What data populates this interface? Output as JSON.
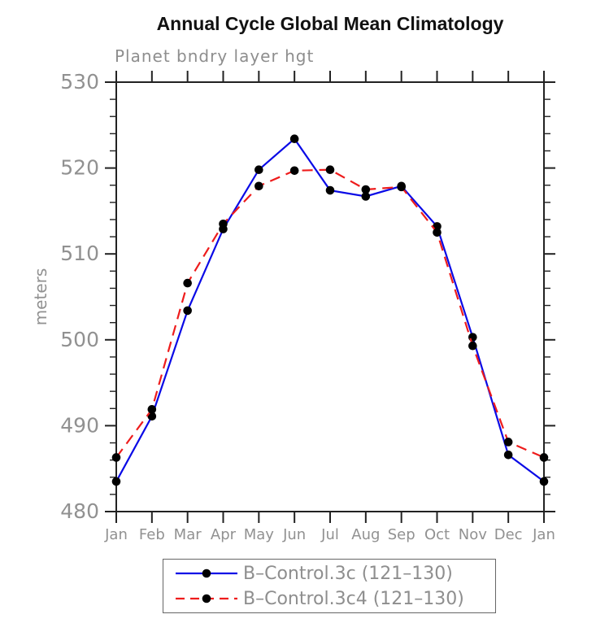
{
  "title": "Annual Cycle Global Mean Climatology",
  "subtitle": "Planet bndry layer hgt",
  "chart_data": {
    "type": "line",
    "x_tick_labels": [
      "Jan",
      "Feb",
      "Mar",
      "Apr",
      "May",
      "Jun",
      "Jul",
      "Aug",
      "Sep",
      "Oct",
      "Nov",
      "Dec",
      "Jan"
    ],
    "ylabel": "meters",
    "ylim": [
      480,
      530
    ],
    "y_major_step": 10,
    "y_minor_step": 2,
    "grid": false,
    "legend_position": "bottom",
    "series": [
      {
        "name": "B–Control.3c (121–130)",
        "color": "#0a0ae6",
        "line_style": "solid",
        "marker": "filled-circle",
        "marker_color": "#000000",
        "values": [
          483.5,
          491.1,
          503.4,
          512.9,
          519.8,
          523.4,
          517.4,
          516.7,
          517.9,
          513.2,
          500.3,
          486.6,
          483.5
        ]
      },
      {
        "name": "B–Control.3c4 (121–130)",
        "color": "#ee1c1c",
        "line_style": "dashed",
        "marker": "filled-circle",
        "marker_color": "#000000",
        "values": [
          486.3,
          491.9,
          506.6,
          513.5,
          517.9,
          519.7,
          519.8,
          517.5,
          517.8,
          512.5,
          499.3,
          488.1,
          486.3
        ]
      }
    ]
  },
  "colors": {
    "axis": "#222222",
    "tick_label": "#919191",
    "title": "#111111",
    "subtitle": "#8e8e8e"
  }
}
